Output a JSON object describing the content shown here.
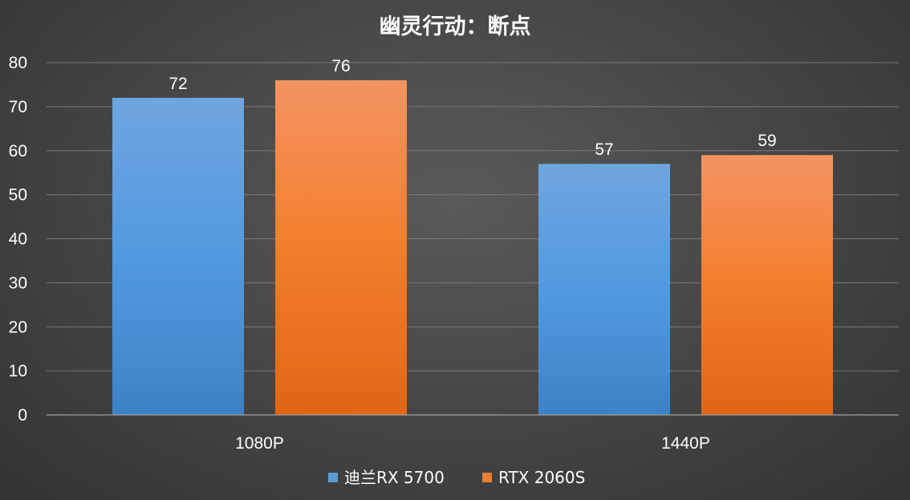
{
  "chart_data": {
    "type": "bar",
    "title": "幽灵行动：断点",
    "categories": [
      "1080P",
      "1440P"
    ],
    "series": [
      {
        "name": "迪兰RX 5700",
        "values": [
          72,
          57
        ],
        "color": "#5b9bd5"
      },
      {
        "name": "RTX 2060S",
        "values": [
          76,
          59
        ],
        "color": "#ed7d31"
      }
    ],
    "ylim": [
      0,
      80
    ],
    "yticks": [
      0,
      10,
      20,
      30,
      40,
      50,
      60,
      70,
      80
    ],
    "grid": true,
    "legend_position": "bottom"
  }
}
